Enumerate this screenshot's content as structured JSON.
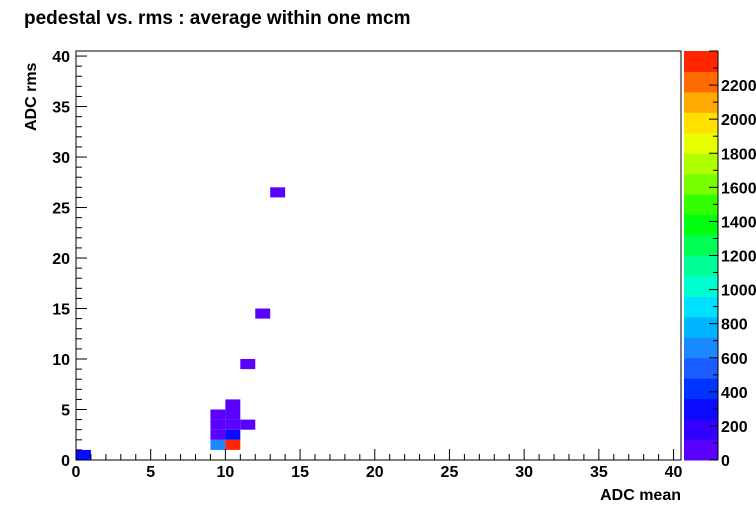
{
  "chart_data": {
    "type": "heatmap",
    "title": "pedestal vs. rms : average within one mcm",
    "xlabel": "ADC mean",
    "ylabel": "ADC rms",
    "xlim": [
      0,
      40.5
    ],
    "ylim": [
      0,
      40.5
    ],
    "x_ticks": [
      "0",
      "5",
      "10",
      "15",
      "20",
      "25",
      "30",
      "35",
      "40"
    ],
    "y_ticks": [
      "0",
      "5",
      "10",
      "15",
      "20",
      "25",
      "30",
      "35",
      "40"
    ],
    "grid": false,
    "bin_width": 1,
    "colorbar": {
      "min": 0,
      "max": 2400,
      "ticks": [
        "0",
        "200",
        "400",
        "600",
        "800",
        "1000",
        "1200",
        "1400",
        "1600",
        "1800",
        "2000",
        "2200"
      ],
      "palette": [
        "#5a00ff",
        "#3300ff",
        "#0a0aff",
        "#0033ff",
        "#1a5cff",
        "#1a88ff",
        "#00b4ff",
        "#00e0ff",
        "#00ffd0",
        "#00ff99",
        "#00ff55",
        "#00ff11",
        "#33ff00",
        "#77ff00",
        "#b0ff00",
        "#e8ff00",
        "#ffe000",
        "#ffaa00",
        "#ff6a00",
        "#ff2600"
      ]
    },
    "bins": [
      {
        "x": 0,
        "y": 0,
        "value": 350
      },
      {
        "x": 9,
        "y": 1,
        "value": 700
      },
      {
        "x": 10,
        "y": 1,
        "value": 2350
      },
      {
        "x": 9,
        "y": 2,
        "value": 100
      },
      {
        "x": 10,
        "y": 2,
        "value": 350
      },
      {
        "x": 9,
        "y": 3,
        "value": 60
      },
      {
        "x": 10,
        "y": 3,
        "value": 60
      },
      {
        "x": 11,
        "y": 3,
        "value": 60
      },
      {
        "x": 9,
        "y": 4,
        "value": 60
      },
      {
        "x": 10,
        "y": 4,
        "value": 60
      },
      {
        "x": 10,
        "y": 5,
        "value": 60
      },
      {
        "x": 11,
        "y": 9,
        "value": 60
      },
      {
        "x": 12,
        "y": 14,
        "value": 60
      },
      {
        "x": 13,
        "y": 26,
        "value": 60
      }
    ]
  }
}
